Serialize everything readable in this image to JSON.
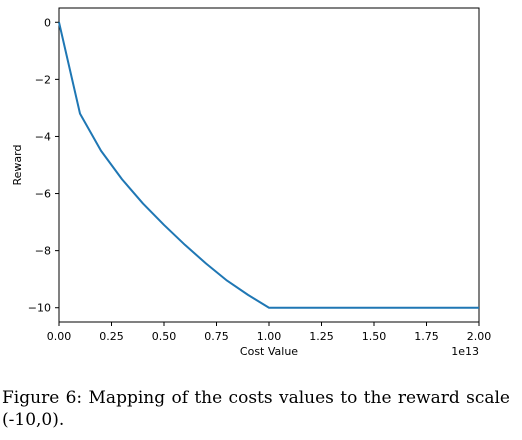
{
  "chart_data": {
    "type": "line",
    "title": "",
    "xlabel": "Cost Value",
    "ylabel": "Reward",
    "x_offset_label": "1e13",
    "xlim": [
      0.0,
      2.0
    ],
    "ylim": [
      -10.5,
      0.5
    ],
    "x_ticks": [
      "0.00",
      "0.25",
      "0.50",
      "0.75",
      "1.00",
      "1.25",
      "1.50",
      "1.75",
      "2.00"
    ],
    "y_ticks": [
      "0",
      "−2",
      "−4",
      "−6",
      "−8",
      "−10"
    ],
    "x_tick_values": [
      0.0,
      0.25,
      0.5,
      0.75,
      1.0,
      1.25,
      1.5,
      1.75,
      2.0
    ],
    "y_tick_values": [
      0,
      -2,
      -4,
      -6,
      -8,
      -10
    ],
    "grid": false,
    "series": [
      {
        "color": "#1f77b4",
        "x": [
          0.0,
          0.1,
          0.2,
          0.3,
          0.4,
          0.5,
          0.6,
          0.7,
          0.8,
          0.9,
          1.0,
          1.25,
          1.5,
          1.75,
          2.0
        ],
        "y": [
          0.0,
          -3.2,
          -4.5,
          -5.5,
          -6.35,
          -7.1,
          -7.8,
          -8.45,
          -9.05,
          -9.55,
          -10.0,
          -10.0,
          -10.0,
          -10.0,
          -10.0
        ]
      }
    ]
  },
  "caption": "Figure 6: Mapping of the costs values to the reward scale (-10,0)."
}
